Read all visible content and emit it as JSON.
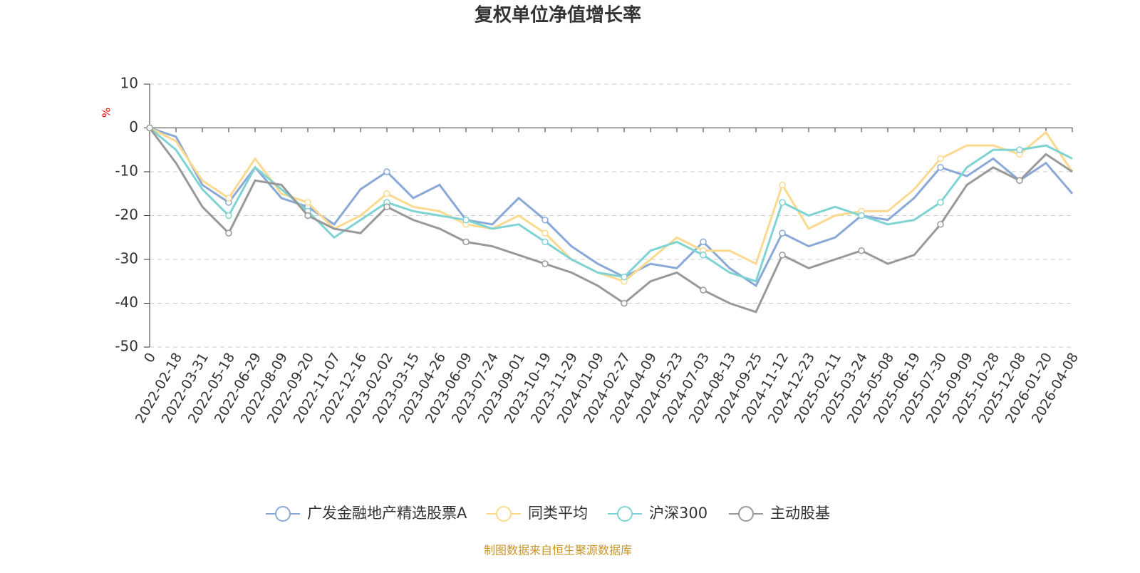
{
  "chart_data": {
    "type": "line",
    "title": "复权单位净值增长率",
    "y_label": "%",
    "categories": [
      "0",
      "2022-02-18",
      "2022-03-31",
      "2022-05-18",
      "2022-06-29",
      "2022-08-09",
      "2022-09-20",
      "2022-11-07",
      "2022-12-16",
      "2023-02-02",
      "2023-03-15",
      "2023-04-26",
      "2023-06-09",
      "2023-07-24",
      "2023-09-01",
      "2023-10-19",
      "2023-11-29",
      "2024-01-09",
      "2024-02-27",
      "2024-04-09",
      "2024-05-23",
      "2024-07-03",
      "2024-08-13",
      "2024-09-25",
      "2024-11-12",
      "2024-12-23",
      "2025-02-11",
      "2025-03-24",
      "2025-05-08",
      "2025-06-19",
      "2025-07-30",
      "2025-09-09",
      "2025-10-28",
      "2025-12-08",
      "2026-01-20",
      "2026-04-08"
    ],
    "series": [
      {
        "name": "广发金融地产精选股票A",
        "color": "#8aa9d6",
        "values": [
          0,
          -2,
          -13,
          -17,
          -9,
          -16,
          -18,
          -22,
          -14,
          -10,
          -16,
          -13,
          -21,
          -22,
          -16,
          -21,
          -27,
          -31,
          -34,
          -31,
          -32,
          -26,
          -32,
          -36,
          -24,
          -27,
          -25,
          -20,
          -21,
          -16,
          -9,
          -11,
          -7,
          -12,
          -8,
          -15
        ]
      },
      {
        "name": "同类平均",
        "color": "#fbd98f",
        "values": [
          0,
          -3,
          -12,
          -16,
          -7,
          -15,
          -17,
          -23,
          -20,
          -15,
          -18,
          -19,
          -22,
          -23,
          -20,
          -24,
          -30,
          -33,
          -35,
          -30,
          -25,
          -28,
          -28,
          -31,
          -13,
          -23,
          -20,
          -19,
          -19,
          -14,
          -7,
          -4,
          -4,
          -6,
          -1,
          -10
        ]
      },
      {
        "name": "沪深300",
        "color": "#7fd4d3",
        "values": [
          0,
          -5,
          -14,
          -20,
          -9,
          -14,
          -19,
          -25,
          -21,
          -17,
          -19,
          -20,
          -21,
          -23,
          -22,
          -26,
          -30,
          -33,
          -34,
          -28,
          -26,
          -29,
          -33,
          -35,
          -17,
          -20,
          -18,
          -20,
          -22,
          -21,
          -17,
          -9,
          -5,
          -5,
          -4,
          -7
        ]
      },
      {
        "name": "主动股基",
        "color": "#999999",
        "values": [
          0,
          -8,
          -18,
          -24,
          -12,
          -13,
          -20,
          -23,
          -24,
          -18,
          -21,
          -23,
          -26,
          -27,
          -29,
          -31,
          -33,
          -36,
          -40,
          -35,
          -33,
          -37,
          -40,
          -42,
          -29,
          -32,
          -30,
          -28,
          -31,
          -29,
          -22,
          -13,
          -9,
          -12,
          -6,
          -10
        ]
      }
    ],
    "ylim": [
      -50,
      10
    ],
    "yticks": [
      -50,
      -40,
      -30,
      -20,
      -10,
      0,
      10
    ],
    "grid": true,
    "source": "制图数据来自恒生聚源数据库"
  }
}
